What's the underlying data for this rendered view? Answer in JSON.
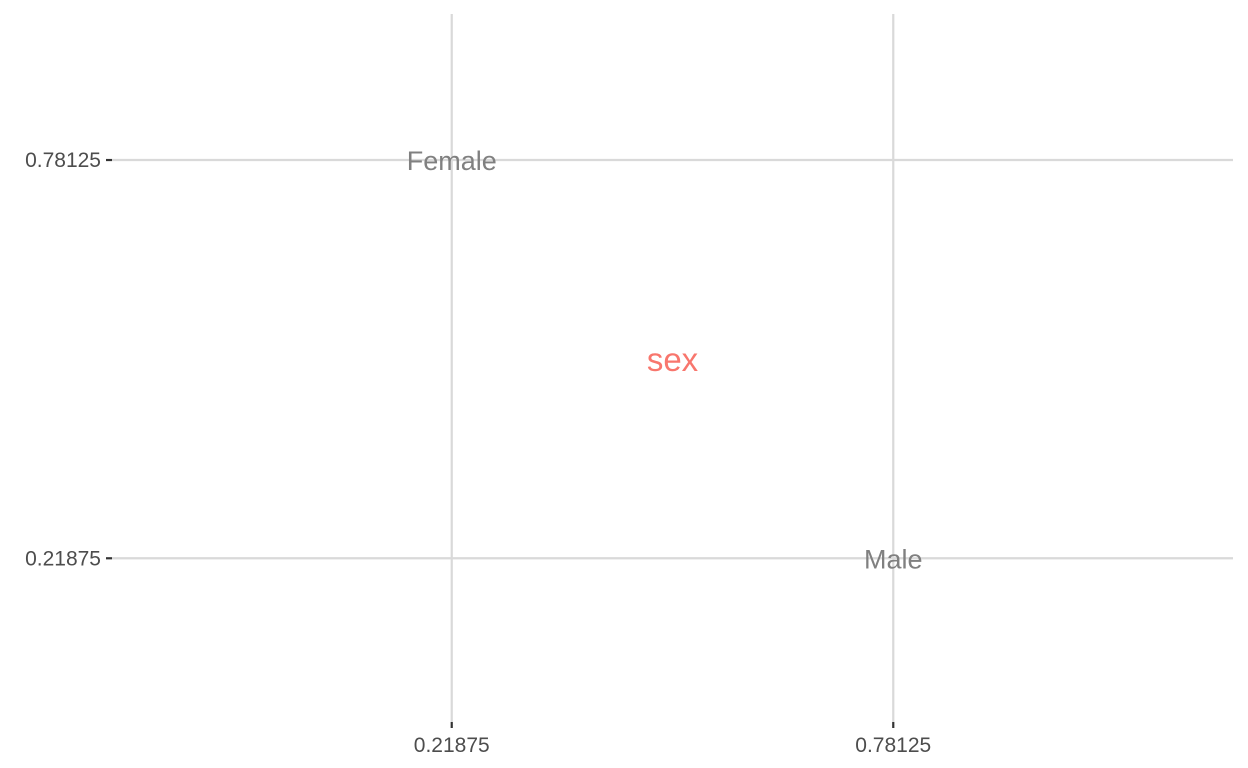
{
  "chart_data": {
    "type": "scatter",
    "title": "",
    "xlabel": "",
    "ylabel": "",
    "xlim": [
      -0.2140625,
      1.2140625
    ],
    "ylim": [
      -0.0125,
      0.9875
    ],
    "x_ticks": [
      0.21875,
      0.78125
    ],
    "x_tick_labels": [
      "0.21875",
      "0.78125"
    ],
    "y_ticks": [
      0.21875,
      0.78125
    ],
    "y_tick_labels": [
      "0.21875",
      "0.78125"
    ],
    "grid": true,
    "points": [
      {
        "label": "Female",
        "x": 0.21875,
        "y": 0.78125
      },
      {
        "label": "Male",
        "x": 0.78125,
        "y": 0.21875
      }
    ],
    "variable_label": {
      "text": "sex",
      "x": 0.5,
      "y": 0.5
    },
    "colors": {
      "variable_label": "#f8766d",
      "point_label": "#808080",
      "grid": "#d9d9d9",
      "tick": "#333333",
      "tick_label": "#4d4d4d"
    }
  }
}
